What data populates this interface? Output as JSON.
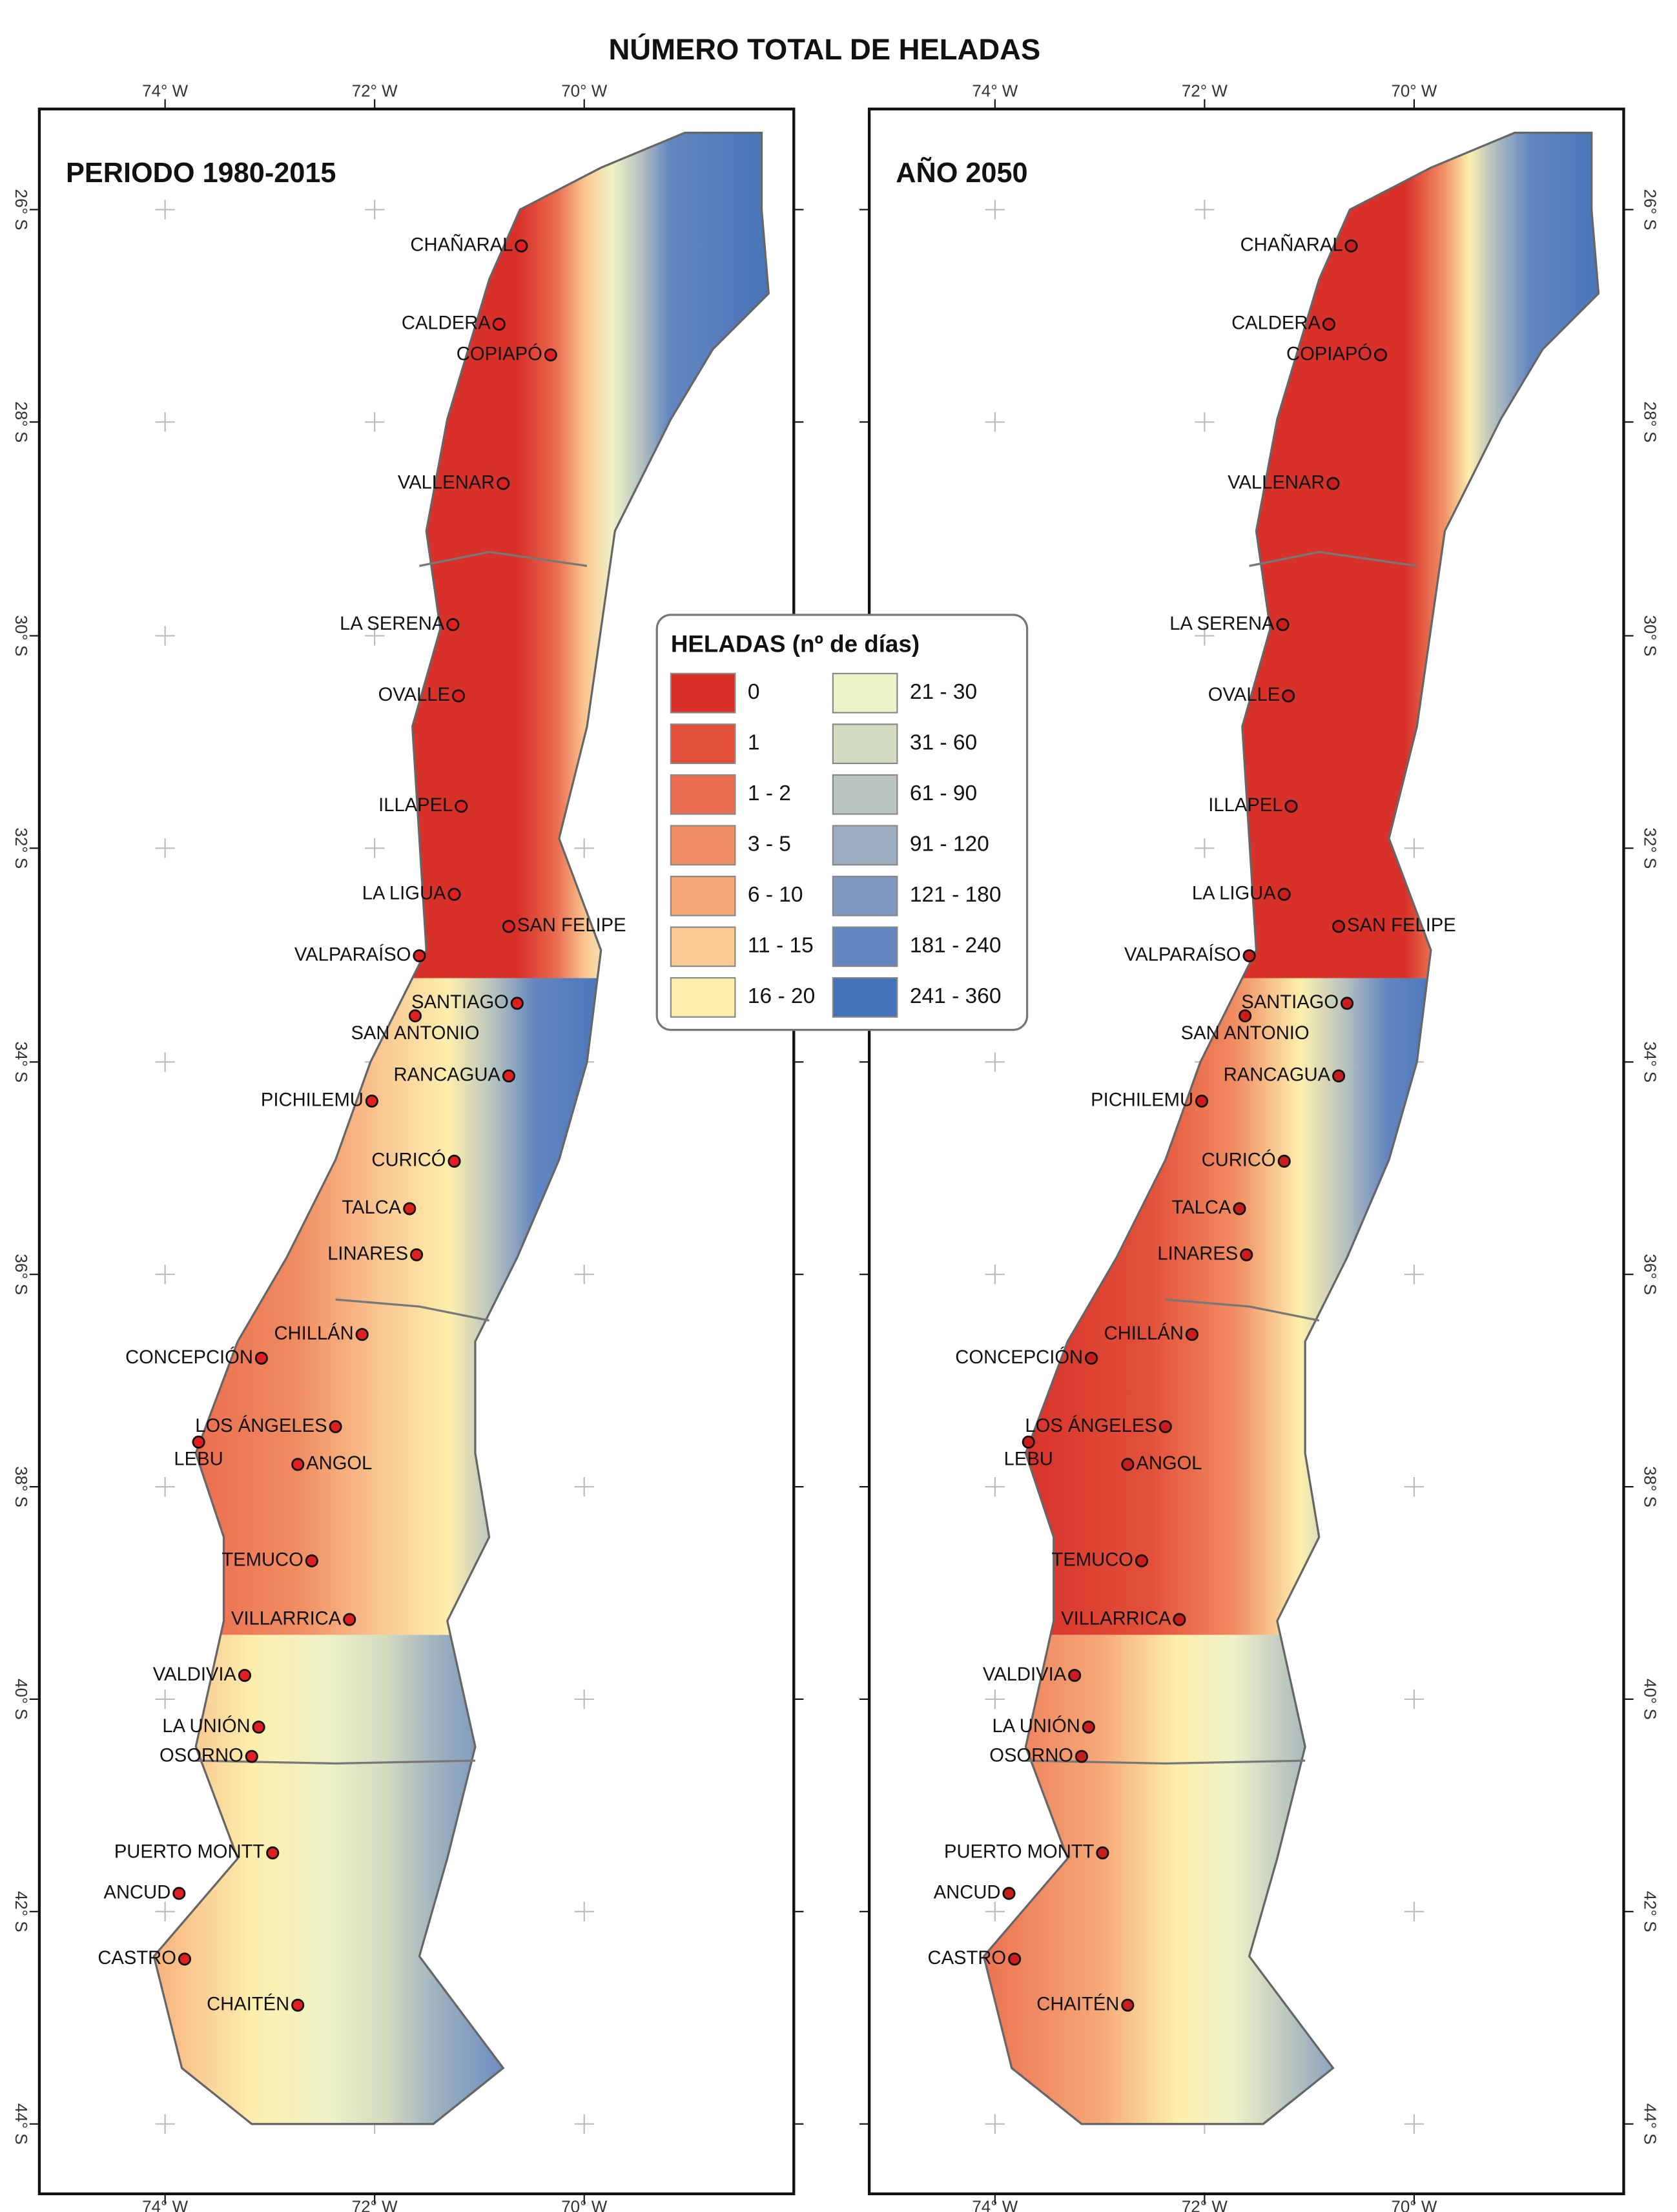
{
  "title": "NÚMERO TOTAL DE HELADAS",
  "axes": {
    "lon_labels": [
      "74° W",
      "72° W",
      "70° W"
    ],
    "lat_labels": [
      "26° S",
      "28° S",
      "30° S",
      "32° S",
      "34° S",
      "36° S",
      "38° S",
      "40° S",
      "42° S",
      "44° S"
    ]
  },
  "panels": [
    {
      "title": "PERIODO 1980-2015",
      "cities": [
        "CHAÑARAL",
        "CALDERA",
        "COPIAPÓ",
        "VALLENAR",
        "LA SERENA",
        "OVALLE",
        "ILLAPEL",
        "LA LIGUA",
        "SAN FELIPE",
        "VALPARAÍSO",
        "SANTIAGO",
        "SAN ANTONIO",
        "RANCAGUA",
        "PICHILEMU",
        "CURICÓ",
        "TALCA",
        "LINARES",
        "CHILLÁN",
        "CONCEPCIÓN",
        "LOS ÁNGELES",
        "LEBU",
        "ANGOL",
        "TEMUCO",
        "VILLARRICA",
        "VALDIVIA",
        "LA UNIÓN",
        "OSORNO",
        "PUERTO MONTT",
        "ANCUD",
        "CASTRO",
        "CHAITÉN"
      ]
    },
    {
      "title": "AÑO 2050",
      "cities": [
        "CHAÑARAL",
        "CALDERA",
        "COPIAPÓ",
        "VALLENAR",
        "LA SERENA",
        "OVALLE",
        "ILLAPEL",
        "LA LIGUA",
        "SAN FELIPE",
        "VALPARAÍSO",
        "SANTIAGO",
        "SAN ANTONIO",
        "RANCAGUA",
        "PICHILEMU",
        "CURICÓ",
        "TALCA",
        "LINARES",
        "CHILLÁN",
        "CONCEPCIÓN",
        "LOS ÁNGELES",
        "LEBU",
        "ANGOL",
        "TEMUCO",
        "VILLARRICA",
        "VALDIVIA",
        "LA UNIÓN",
        "OSORNO",
        "PUERTO MONTT",
        "ANCUD",
        "CASTRO",
        "CHAITÉN"
      ]
    }
  ],
  "legend": {
    "title": "HELADAS (nº de días)",
    "items": [
      {
        "label": "0",
        "color": "#d7312a"
      },
      {
        "label": "1",
        "color": "#e2503a"
      },
      {
        "label": "1 - 2",
        "color": "#ea6c4e"
      },
      {
        "label": "3 - 5",
        "color": "#f08c62"
      },
      {
        "label": "6 - 10",
        "color": "#f6a978"
      },
      {
        "label": "11 - 15",
        "color": "#fbc993"
      },
      {
        "label": "16 - 20",
        "color": "#fdefad"
      },
      {
        "label": "21 - 30",
        "color": "#eef2c8"
      },
      {
        "label": "31 - 60",
        "color": "#d3dbc0"
      },
      {
        "label": "61 - 90",
        "color": "#b9c4bf"
      },
      {
        "label": "91 - 120",
        "color": "#9aaebf"
      },
      {
        "label": "121 - 180",
        "color": "#7e98c0"
      },
      {
        "label": "181 - 240",
        "color": "#6386c0"
      },
      {
        "label": "241 - 360",
        "color": "#4472b8"
      }
    ]
  }
}
